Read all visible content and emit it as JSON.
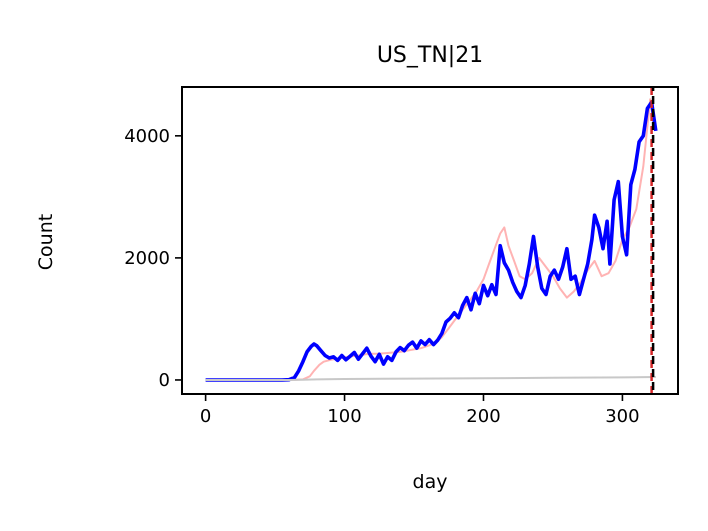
{
  "chart_data": {
    "type": "line",
    "title": "US_TN|21",
    "xlabel": "day",
    "ylabel": "Count",
    "xlim": [
      -17,
      340
    ],
    "ylim": [
      -230,
      4800
    ],
    "x_ticks": [
      0,
      100,
      200,
      300
    ],
    "y_ticks": [
      0,
      2000,
      4000
    ],
    "x_tick_labels": [
      "0",
      "100",
      "200",
      "300"
    ],
    "y_tick_labels": [
      "0",
      "2000",
      "4000"
    ],
    "grid": false,
    "legend": "none",
    "vline": {
      "x": 321,
      "colors": [
        "#d62728",
        "#000000"
      ],
      "style": "dashed"
    },
    "series": [
      {
        "color": "#ffb3b3",
        "style": "thin",
        "x": [
          0,
          55,
          62,
          70,
          75,
          78,
          82,
          85,
          90,
          95,
          100,
          105,
          110,
          115,
          120,
          125,
          130,
          135,
          140,
          145,
          150,
          155,
          160,
          165,
          170,
          175,
          180,
          185,
          190,
          195,
          200,
          204,
          208,
          212,
          215,
          218,
          222,
          226,
          230,
          235,
          240,
          245,
          250,
          255,
          260,
          265,
          270,
          275,
          280,
          285,
          290,
          295,
          300,
          305,
          310,
          315,
          320,
          323
        ],
        "y": [
          0,
          0,
          0,
          10,
          60,
          150,
          250,
          300,
          330,
          350,
          370,
          390,
          400,
          420,
          430,
          430,
          440,
          450,
          460,
          480,
          500,
          520,
          560,
          600,
          700,
          850,
          1000,
          1150,
          1300,
          1450,
          1650,
          1900,
          2150,
          2400,
          2500,
          2200,
          1950,
          1700,
          1650,
          1750,
          2000,
          1850,
          1700,
          1500,
          1350,
          1450,
          1600,
          1800,
          1950,
          1700,
          1750,
          1950,
          2300,
          2500,
          2800,
          3500,
          4600,
          4100
        ]
      },
      {
        "color": "#0000ff",
        "style": "thick",
        "x": [
          0,
          20,
          40,
          55,
          60,
          64,
          67,
          70,
          73,
          76,
          78,
          80,
          83,
          86,
          89,
          92,
          95,
          98,
          101,
          104,
          107,
          110,
          113,
          116,
          119,
          122,
          125,
          128,
          131,
          134,
          137,
          140,
          143,
          146,
          149,
          152,
          155,
          158,
          161,
          164,
          167,
          170,
          173,
          176,
          179,
          182,
          185,
          188,
          191,
          194,
          197,
          200,
          203,
          206,
          209,
          212,
          215,
          218,
          221,
          224,
          227,
          230,
          233,
          236,
          239,
          242,
          245,
          248,
          251,
          254,
          257,
          260,
          263,
          266,
          269,
          272,
          275,
          278,
          280,
          283,
          286,
          289,
          291,
          294,
          297,
          300,
          303,
          306,
          309,
          312,
          315,
          318,
          321,
          324
        ],
        "y": [
          0,
          0,
          0,
          0,
          5,
          40,
          150,
          300,
          460,
          550,
          590,
          560,
          480,
          400,
          360,
          380,
          320,
          400,
          330,
          390,
          450,
          340,
          430,
          520,
          390,
          300,
          420,
          260,
          380,
          320,
          460,
          530,
          480,
          570,
          620,
          520,
          640,
          580,
          660,
          580,
          650,
          760,
          950,
          1010,
          1100,
          1020,
          1220,
          1350,
          1150,
          1420,
          1250,
          1550,
          1380,
          1560,
          1400,
          2200,
          1920,
          1800,
          1600,
          1450,
          1350,
          1550,
          1900,
          2350,
          1850,
          1500,
          1400,
          1700,
          1800,
          1650,
          1850,
          2150,
          1650,
          1700,
          1400,
          1650,
          1900,
          2300,
          2700,
          2500,
          2150,
          2600,
          1900,
          2950,
          3250,
          2350,
          2050,
          3200,
          3450,
          3900,
          4000,
          4450,
          4550,
          4080
        ]
      },
      {
        "color": "#c8c8c8",
        "style": "thin",
        "x": [
          0,
          60,
          70,
          80,
          100,
          150,
          200,
          250,
          300,
          324
        ],
        "y": [
          0,
          0,
          5,
          10,
          15,
          22,
          28,
          35,
          42,
          48
        ]
      }
    ]
  }
}
